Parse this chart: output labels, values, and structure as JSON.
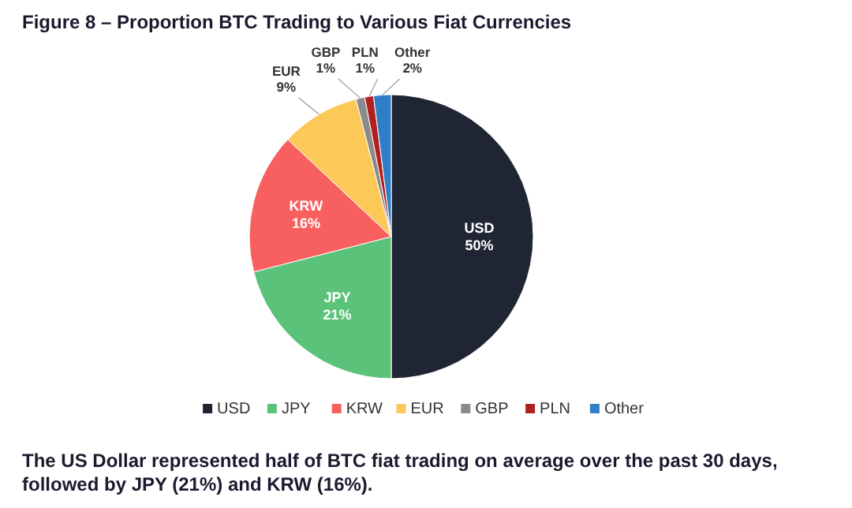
{
  "chart_data": {
    "type": "pie",
    "title": "Figure 8 – Proportion BTC Trading to Various Fiat Currencies",
    "categories": [
      "USD",
      "JPY",
      "KRW",
      "EUR",
      "GBP",
      "PLN",
      "Other"
    ],
    "values": [
      50,
      21,
      16,
      9,
      1,
      1,
      2
    ],
    "value_labels": [
      "50%",
      "21%",
      "16%",
      "9%",
      "1%",
      "1%",
      "2%"
    ],
    "colors": [
      "#1f2532",
      "#5bc27a",
      "#f85f5f",
      "#fcc857",
      "#8a8a8a",
      "#b21f1f",
      "#2f7fc6"
    ],
    "legend": "bottom",
    "annotations": [
      "The US Dollar represented half of BTC fiat trading on average over the past 30 days, followed by JPY (21%) and KRW (16%)."
    ]
  }
}
